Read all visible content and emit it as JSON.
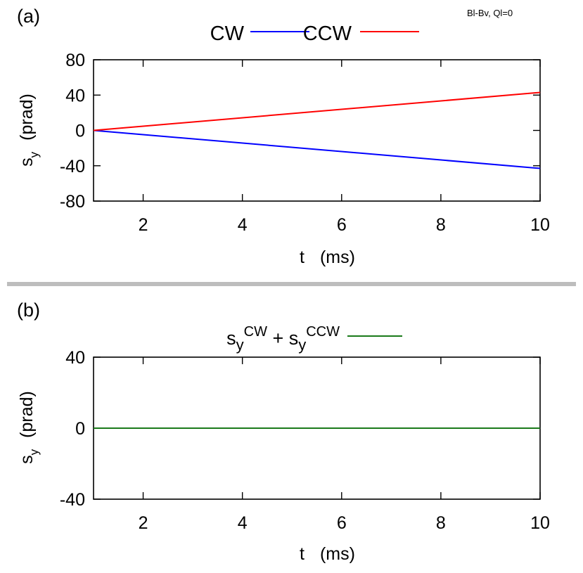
{
  "page": {
    "corner_note": "Bl-Bv, Ql=0",
    "separator_color": "#bdbdbd"
  },
  "chart_data": [
    {
      "type": "line",
      "panel_label": "(a)",
      "xlabel": "t (ms)",
      "ylabel": "s_y (prad)",
      "xlim": [
        1,
        10
      ],
      "ylim": [
        -80,
        80
      ],
      "xticks": [
        2,
        4,
        6,
        8,
        10
      ],
      "xtick_labels": [
        "2",
        "4",
        "6",
        "8",
        "10"
      ],
      "yticks": [
        -80,
        -40,
        0,
        40,
        80
      ],
      "ytick_labels": [
        "-80",
        "-40",
        "0",
        "40",
        "80"
      ],
      "legend_position": "top-center",
      "series": [
        {
          "name": "CW",
          "color": "#0000ff",
          "x": [
            1,
            10
          ],
          "y": [
            0,
            -43
          ]
        },
        {
          "name": "CCW",
          "color": "#ff0000",
          "x": [
            1,
            10
          ],
          "y": [
            0,
            43
          ]
        }
      ]
    },
    {
      "type": "line",
      "panel_label": "(b)",
      "xlabel": "t (ms)",
      "ylabel": "s_y (prad)",
      "xlim": [
        1,
        10
      ],
      "ylim": [
        -40,
        40
      ],
      "xticks": [
        2,
        4,
        6,
        8,
        10
      ],
      "xtick_labels": [
        "2",
        "4",
        "6",
        "8",
        "10"
      ],
      "yticks": [
        -40,
        0,
        40
      ],
      "ytick_labels": [
        "-40",
        "0",
        "40"
      ],
      "legend_position": "top-center",
      "series": [
        {
          "name": "s_y^CW + s_y^CCW",
          "color": "#1a7a1a",
          "x": [
            1,
            10
          ],
          "y": [
            0,
            0
          ]
        }
      ]
    }
  ]
}
